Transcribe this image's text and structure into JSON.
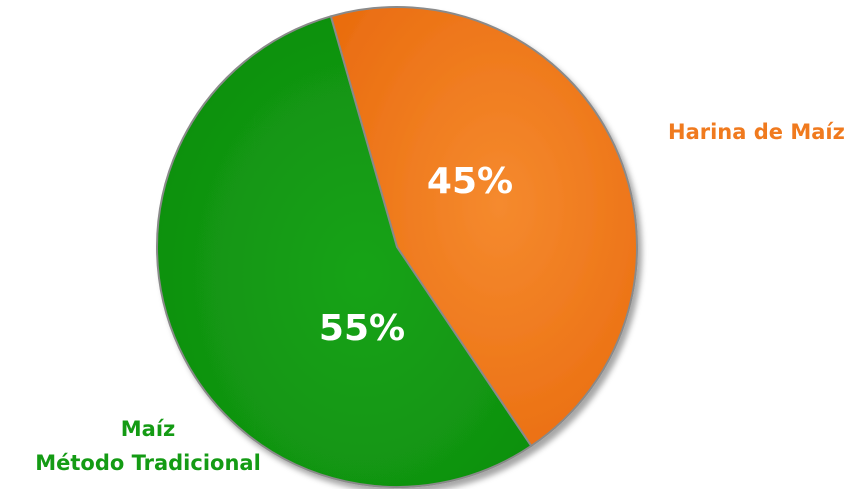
{
  "chart_data": {
    "type": "pie",
    "title": "",
    "slices": [
      {
        "label": "Harina de Maíz",
        "value": 45,
        "value_label": "45%",
        "color": "#f07a1e"
      },
      {
        "label_lines": [
          "Maíz",
          "Método Tradicional"
        ],
        "value": 55,
        "value_label": "55%",
        "color": "#149b14"
      }
    ],
    "legend_colors": {
      "harina": "#f07a1e",
      "tradicional": "#149b14"
    }
  }
}
